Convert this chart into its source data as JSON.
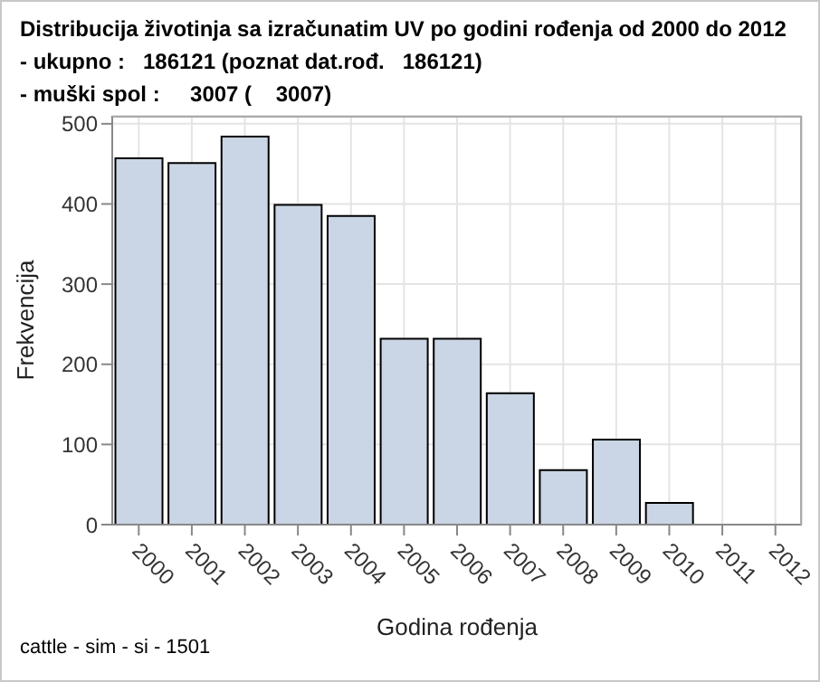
{
  "chart_data": {
    "type": "bar",
    "title": "Distribucija životinja sa izračunatim UV po godini rođenja od 2000 do 2012",
    "subtitle": "- ukupno :   186121 (poznat dat.rođ.   186121)\n- muški spol :     3007 (    3007)",
    "xlabel": "Godina rođenja",
    "ylabel": "Frekvencija",
    "categories": [
      "2000",
      "2001",
      "2002",
      "2003",
      "2004",
      "2005",
      "2006",
      "2007",
      "2008",
      "2009",
      "2010",
      "2011",
      "2012"
    ],
    "values": [
      457,
      451,
      484,
      399,
      385,
      232,
      232,
      164,
      68,
      106,
      27,
      0,
      0
    ],
    "color": "#cad5e5",
    "ylim": [
      0,
      510
    ],
    "yticks": [
      0,
      100,
      200,
      300,
      400,
      500
    ],
    "grid": true,
    "annotations": [
      "cattle - sim - si - 1501"
    ]
  }
}
